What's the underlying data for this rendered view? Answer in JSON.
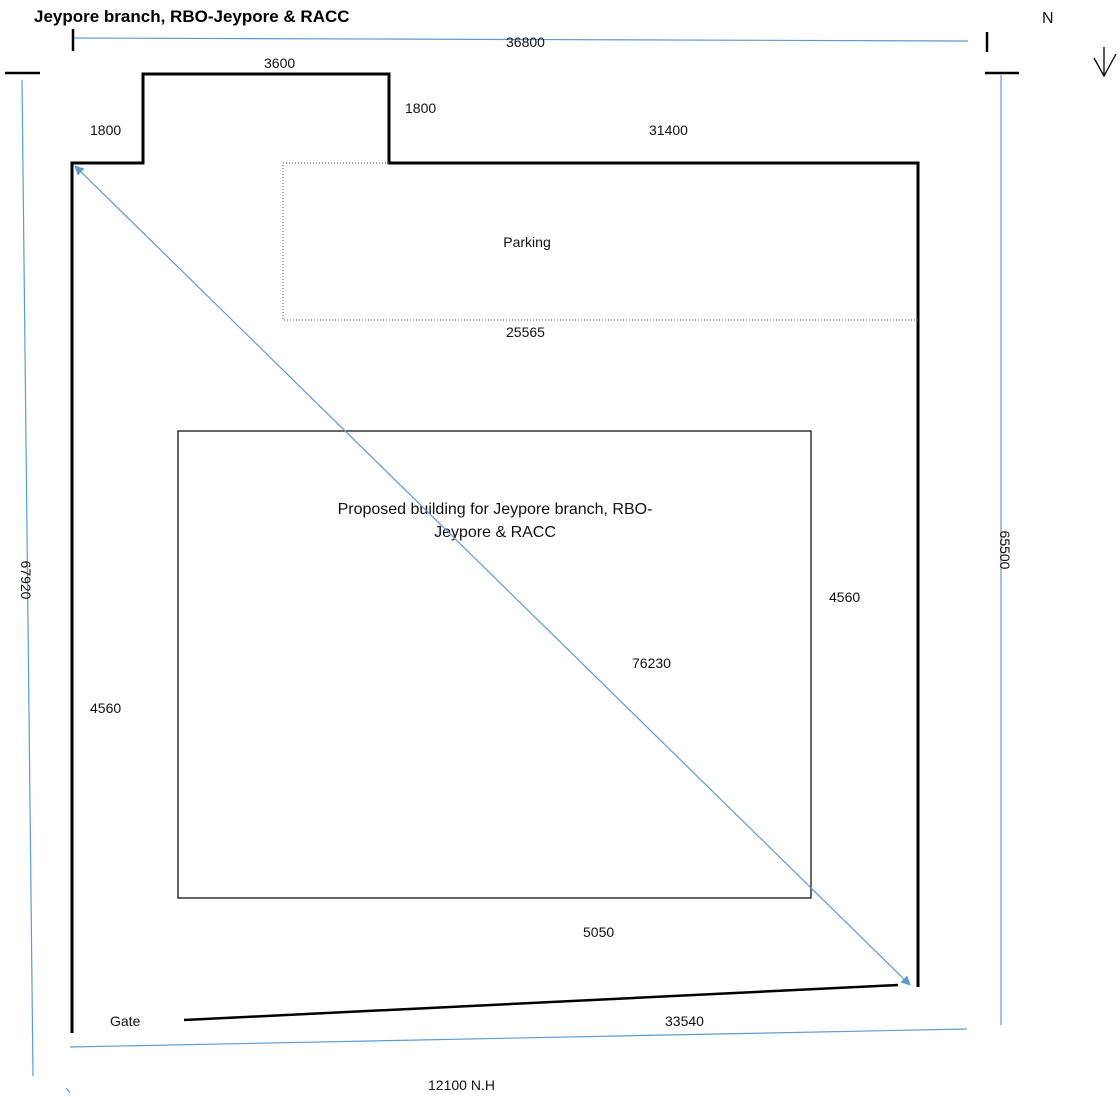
{
  "title": "Jeypore branch, RBO-Jeypore & RACC",
  "north_label": "N",
  "parking_label": "Parking",
  "building_label_line1": "Proposed building for Jeypore branch, RBO-",
  "building_label_line2": "Jeypore & RACC",
  "gate_label": "Gate",
  "road_label": "12100  N.H",
  "dimensions": {
    "top_overall": "36800",
    "notch_top": "3600",
    "notch_left": "1800",
    "notch_right": "1800",
    "top_right": "31400",
    "parking_width": "25565",
    "left_overall": "67920",
    "right_overall": "65500",
    "right_setback": "4560",
    "left_setback": "4560",
    "diagonal": "76230",
    "front_setback": "5050",
    "bottom_wall": "33540"
  },
  "colors": {
    "wall": "#000000",
    "dimension_line": "#5b9bd5",
    "text": "#111111"
  }
}
